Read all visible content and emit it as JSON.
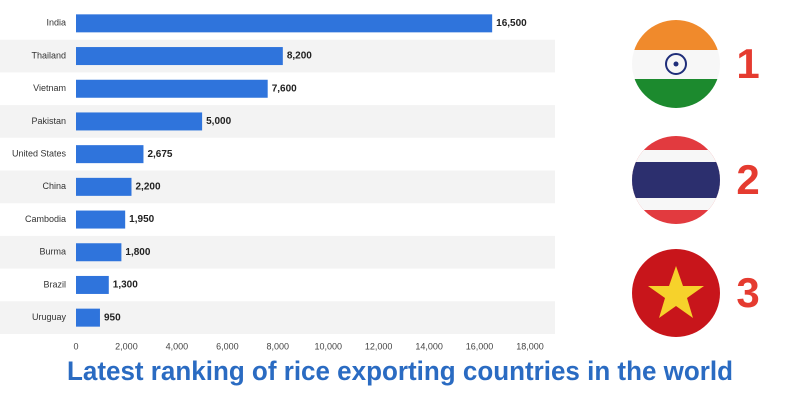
{
  "chart_data": {
    "type": "bar",
    "orientation": "horizontal",
    "title": "Latest ranking of rice exporting countries in the world",
    "categories": [
      "India",
      "Thailand",
      "Vietnam",
      "Pakistan",
      "United States",
      "China",
      "Cambodia",
      "Burma",
      "Brazil",
      "Uruguay"
    ],
    "values": [
      16500,
      8200,
      7600,
      5000,
      2675,
      2200,
      1950,
      1800,
      1300,
      950
    ],
    "value_labels": [
      "16,500",
      "8,200",
      "7,600",
      "5,000",
      "2,675",
      "2,200",
      "1,950",
      "1,800",
      "1,300",
      "950"
    ],
    "color": "#2f74dc",
    "xlim": [
      0,
      18000
    ],
    "xticks": [
      0,
      {
        "value": 2000,
        "label": "2,000"
      },
      {
        "value": 4000,
        "label": "4,000"
      },
      {
        "value": 6000,
        "label": "6,000"
      },
      {
        "value": 8000,
        "label": "8,000"
      },
      {
        "value": 10000,
        "label": "10,000"
      },
      {
        "value": 12000,
        "label": "12,000"
      },
      {
        "value": 14000,
        "label": "14,000"
      },
      {
        "value": 16000,
        "label": "16,000"
      },
      {
        "value": 18000,
        "label": "18,000"
      }
    ],
    "grid": false,
    "annotations": [
      "1",
      "2",
      "3"
    ]
  }
}
